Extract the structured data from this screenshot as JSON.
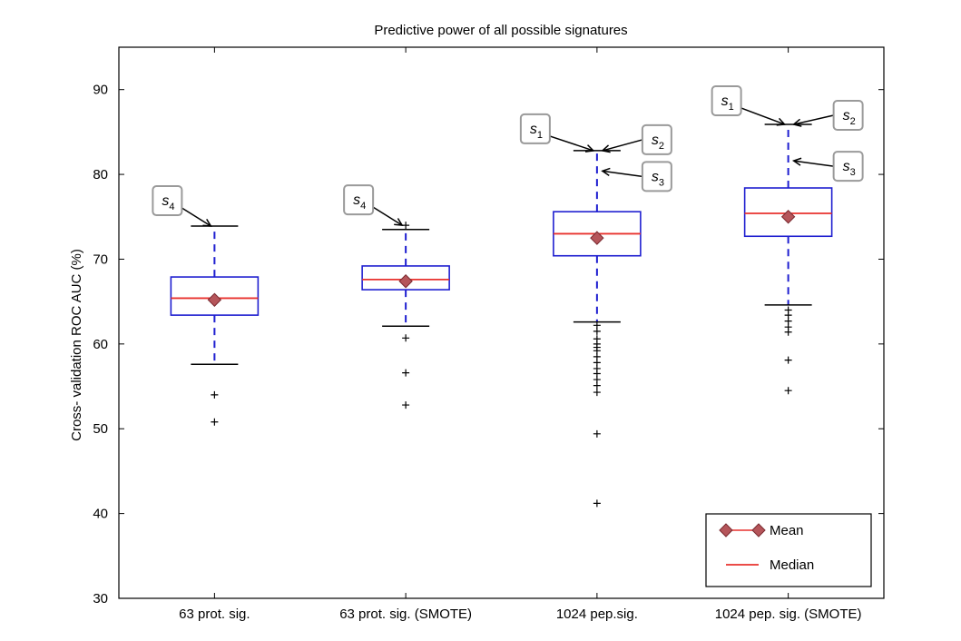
{
  "chart_data": {
    "type": "box",
    "title": "Predictive power of all possible signatures",
    "xlabel": "",
    "ylabel": "Cross- validation ROC AUC (%)",
    "ylim": [
      30,
      95
    ],
    "yticks": [
      30,
      40,
      50,
      60,
      70,
      80,
      90
    ],
    "grid": false,
    "categories": [
      "63 prot. sig.",
      "63 prot. sig. (SMOTE)",
      "1024 pep.sig.",
      "1024 pep. sig. (SMOTE)"
    ],
    "boxes": [
      {
        "category": "63 prot. sig.",
        "whisker_low": 57.6,
        "q1": 63.4,
        "median": 65.4,
        "q3": 67.9,
        "whisker_high": 73.9,
        "mean": 65.2,
        "outliers": [
          54.0,
          50.8
        ]
      },
      {
        "category": "63 prot. sig. (SMOTE)",
        "whisker_low": 62.1,
        "q1": 66.4,
        "median": 67.6,
        "q3": 69.2,
        "whisker_high": 73.5,
        "mean": 67.4,
        "outliers": [
          74.0,
          60.7,
          56.6,
          52.8
        ]
      },
      {
        "category": "1024 pep.sig.",
        "whisker_low": 62.6,
        "q1": 70.4,
        "median": 73.0,
        "q3": 75.6,
        "whisker_high": 82.8,
        "mean": 72.5,
        "outliers": [
          62.2,
          61.5,
          60.6,
          60.0,
          59.6,
          59.2,
          58.5,
          57.8,
          57.1,
          56.5,
          55.8,
          55.1,
          54.3,
          49.4,
          41.2
        ]
      },
      {
        "category": "1024 pep. sig. (SMOTE)",
        "whisker_low": 64.6,
        "q1": 72.7,
        "median": 75.4,
        "q3": 78.4,
        "whisker_high": 85.9,
        "mean": 75.0,
        "outliers": [
          64.0,
          63.4,
          62.7,
          62.0,
          61.4,
          58.1,
          54.5
        ]
      }
    ],
    "annotations": [
      {
        "base": "s",
        "sub": "4",
        "category": "63 prot. sig.",
        "target": 73.9
      },
      {
        "base": "s",
        "sub": "4",
        "category": "63 prot. sig. (SMOTE)",
        "target": 74.0
      },
      {
        "base": "s",
        "sub": "1",
        "category": "1024 pep.sig.",
        "target": 82.8
      },
      {
        "base": "s",
        "sub": "2",
        "category": "1024 pep.sig.",
        "target": 82.8
      },
      {
        "base": "s",
        "sub": "3",
        "category": "1024 pep.sig.",
        "target": 80.4
      },
      {
        "base": "s",
        "sub": "1",
        "category": "1024 pep. sig. (SMOTE)",
        "target": 85.9
      },
      {
        "base": "s",
        "sub": "2",
        "category": "1024 pep. sig. (SMOTE)",
        "target": 85.9
      },
      {
        "base": "s",
        "sub": "3",
        "category": "1024 pep. sig. (SMOTE)",
        "target": 81.6
      }
    ],
    "legend": {
      "placement": "bottom-right",
      "entries": [
        {
          "label": "Mean",
          "marker": "diamond",
          "color": "#b5555a"
        },
        {
          "label": "Median",
          "marker": "line",
          "color": "#e8322e"
        }
      ]
    },
    "colors": {
      "box": "#1f1fd0",
      "median": "#e8322e",
      "whisker": "#1f1fd0",
      "cap": "#000000",
      "mean_fill": "#b5555a",
      "mean_edge": "#7a2a30",
      "outlier": "#000000",
      "annotation_box": "#9a9a9a"
    }
  }
}
